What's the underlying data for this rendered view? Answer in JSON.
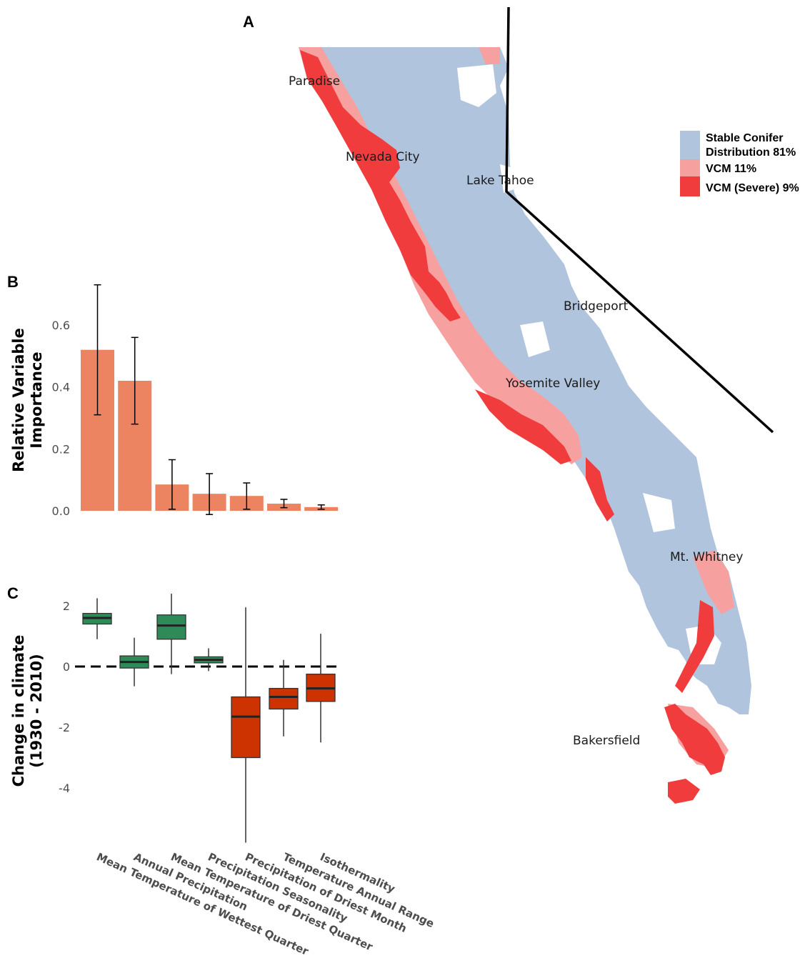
{
  "panels": {
    "a": "A",
    "b": "B",
    "c": "C"
  },
  "map": {
    "cities": [
      {
        "name": "Paradise"
      },
      {
        "name": "Nevada City"
      },
      {
        "name": "Lake Tahoe"
      },
      {
        "name": "Bridgeport"
      },
      {
        "name": "Yosemite Valley"
      },
      {
        "name": "Mt. Whitney"
      },
      {
        "name": "Bakersfield"
      }
    ],
    "legend": [
      {
        "lines": [
          "Stable Conifer",
          "Distribution 81%"
        ],
        "color": "#b0c4de"
      },
      {
        "lines": [
          "VCM 11%"
        ],
        "color": "#f7a0a0"
      },
      {
        "lines": [
          "VCM (Severe) 9%"
        ],
        "color": "#f03c3c"
      }
    ],
    "colors": {
      "stable": "#b0c4de",
      "vcm": "#f7a0a0",
      "severe": "#f03c3c",
      "border": "#000000"
    }
  },
  "chart_data": [
    {
      "type": "bar",
      "panel": "B",
      "ylabel": "Relative Variable\nImportance",
      "ylim": [
        0,
        0.75
      ],
      "yticks": [
        "0.0",
        "0.2",
        "0.4",
        "0.6"
      ],
      "ytick_values": [
        0,
        0.2,
        0.4,
        0.6
      ],
      "color": "#ec8462",
      "series": [
        {
          "values": [
            0.52,
            0.42,
            0.085,
            0.055,
            0.048,
            0.023,
            0.012
          ],
          "error_low": [
            0.31,
            0.28,
            0.005,
            -0.012,
            0.005,
            0.01,
            0.005
          ],
          "error_high": [
            0.73,
            0.56,
            0.165,
            0.12,
            0.09,
            0.037,
            0.019
          ]
        }
      ]
    },
    {
      "type": "box",
      "panel": "C",
      "ylabel": "Change in climate\n(1930 - 2010)",
      "ylim": [
        -5.8,
        2.5
      ],
      "yticks": [
        "2",
        "0",
        "-2",
        "-4"
      ],
      "ytick_values": [
        2,
        0,
        -2,
        -4
      ],
      "reference_line": 0,
      "colors": {
        "increase": "#2e8b57",
        "decrease": "#cc3300"
      },
      "categories": [
        "Mean Temperature of Wettest Quarter",
        "Annual Precipitation",
        "Mean Temperature of Driest Quarter",
        "Precipitation Seasonality",
        "Precipitation of Driest Month",
        "Temperature Annual Range",
        "Isothermality"
      ],
      "boxes": [
        {
          "min": 0.9,
          "q1": 1.4,
          "median": 1.6,
          "q3": 1.75,
          "max": 2.25,
          "group": "increase"
        },
        {
          "min": -0.65,
          "q1": -0.05,
          "median": 0.15,
          "q3": 0.35,
          "max": 0.95,
          "group": "increase"
        },
        {
          "min": -0.25,
          "q1": 0.9,
          "median": 1.35,
          "q3": 1.7,
          "max": 2.4,
          "group": "increase"
        },
        {
          "min": -0.15,
          "q1": 0.12,
          "median": 0.22,
          "q3": 0.32,
          "max": 0.6,
          "group": "increase"
        },
        {
          "min": -5.8,
          "q1": -3.0,
          "median": -1.65,
          "q3": -1.0,
          "max": 1.95,
          "group": "decrease"
        },
        {
          "min": -2.3,
          "q1": -1.4,
          "median": -1.0,
          "q3": -0.72,
          "max": 0.22,
          "group": "decrease"
        },
        {
          "min": -2.5,
          "q1": -1.15,
          "median": -0.72,
          "q3": -0.25,
          "max": 1.08,
          "group": "decrease"
        }
      ]
    }
  ]
}
